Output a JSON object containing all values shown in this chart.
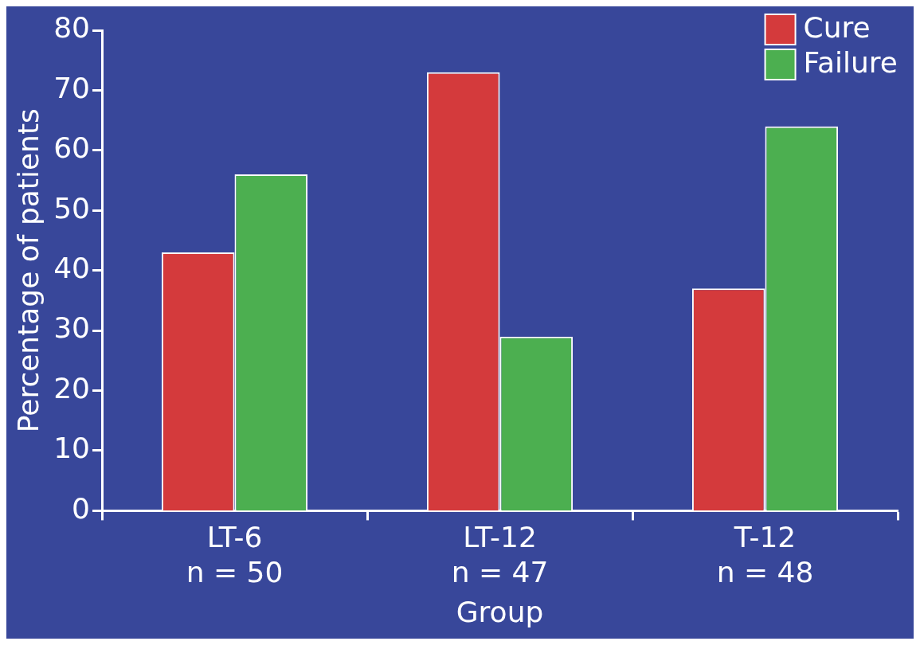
{
  "chart_data": {
    "type": "bar",
    "xlabel": "Group",
    "ylabel": "Percentage of patients",
    "categories": [
      "LT-6\nn = 50",
      "LT-12\nn = 47",
      "T-12\nn = 48"
    ],
    "series": [
      {
        "name": "Cure",
        "color": "#d43a3c",
        "values": [
          43,
          73,
          37
        ]
      },
      {
        "name": "Failure",
        "color": "#4caf50",
        "values": [
          56,
          29,
          64
        ]
      }
    ],
    "ylim": [
      0,
      80
    ],
    "yticks": [
      0,
      10,
      20,
      30,
      40,
      50,
      60,
      70,
      80
    ],
    "grid": false,
    "legend": "top right"
  }
}
